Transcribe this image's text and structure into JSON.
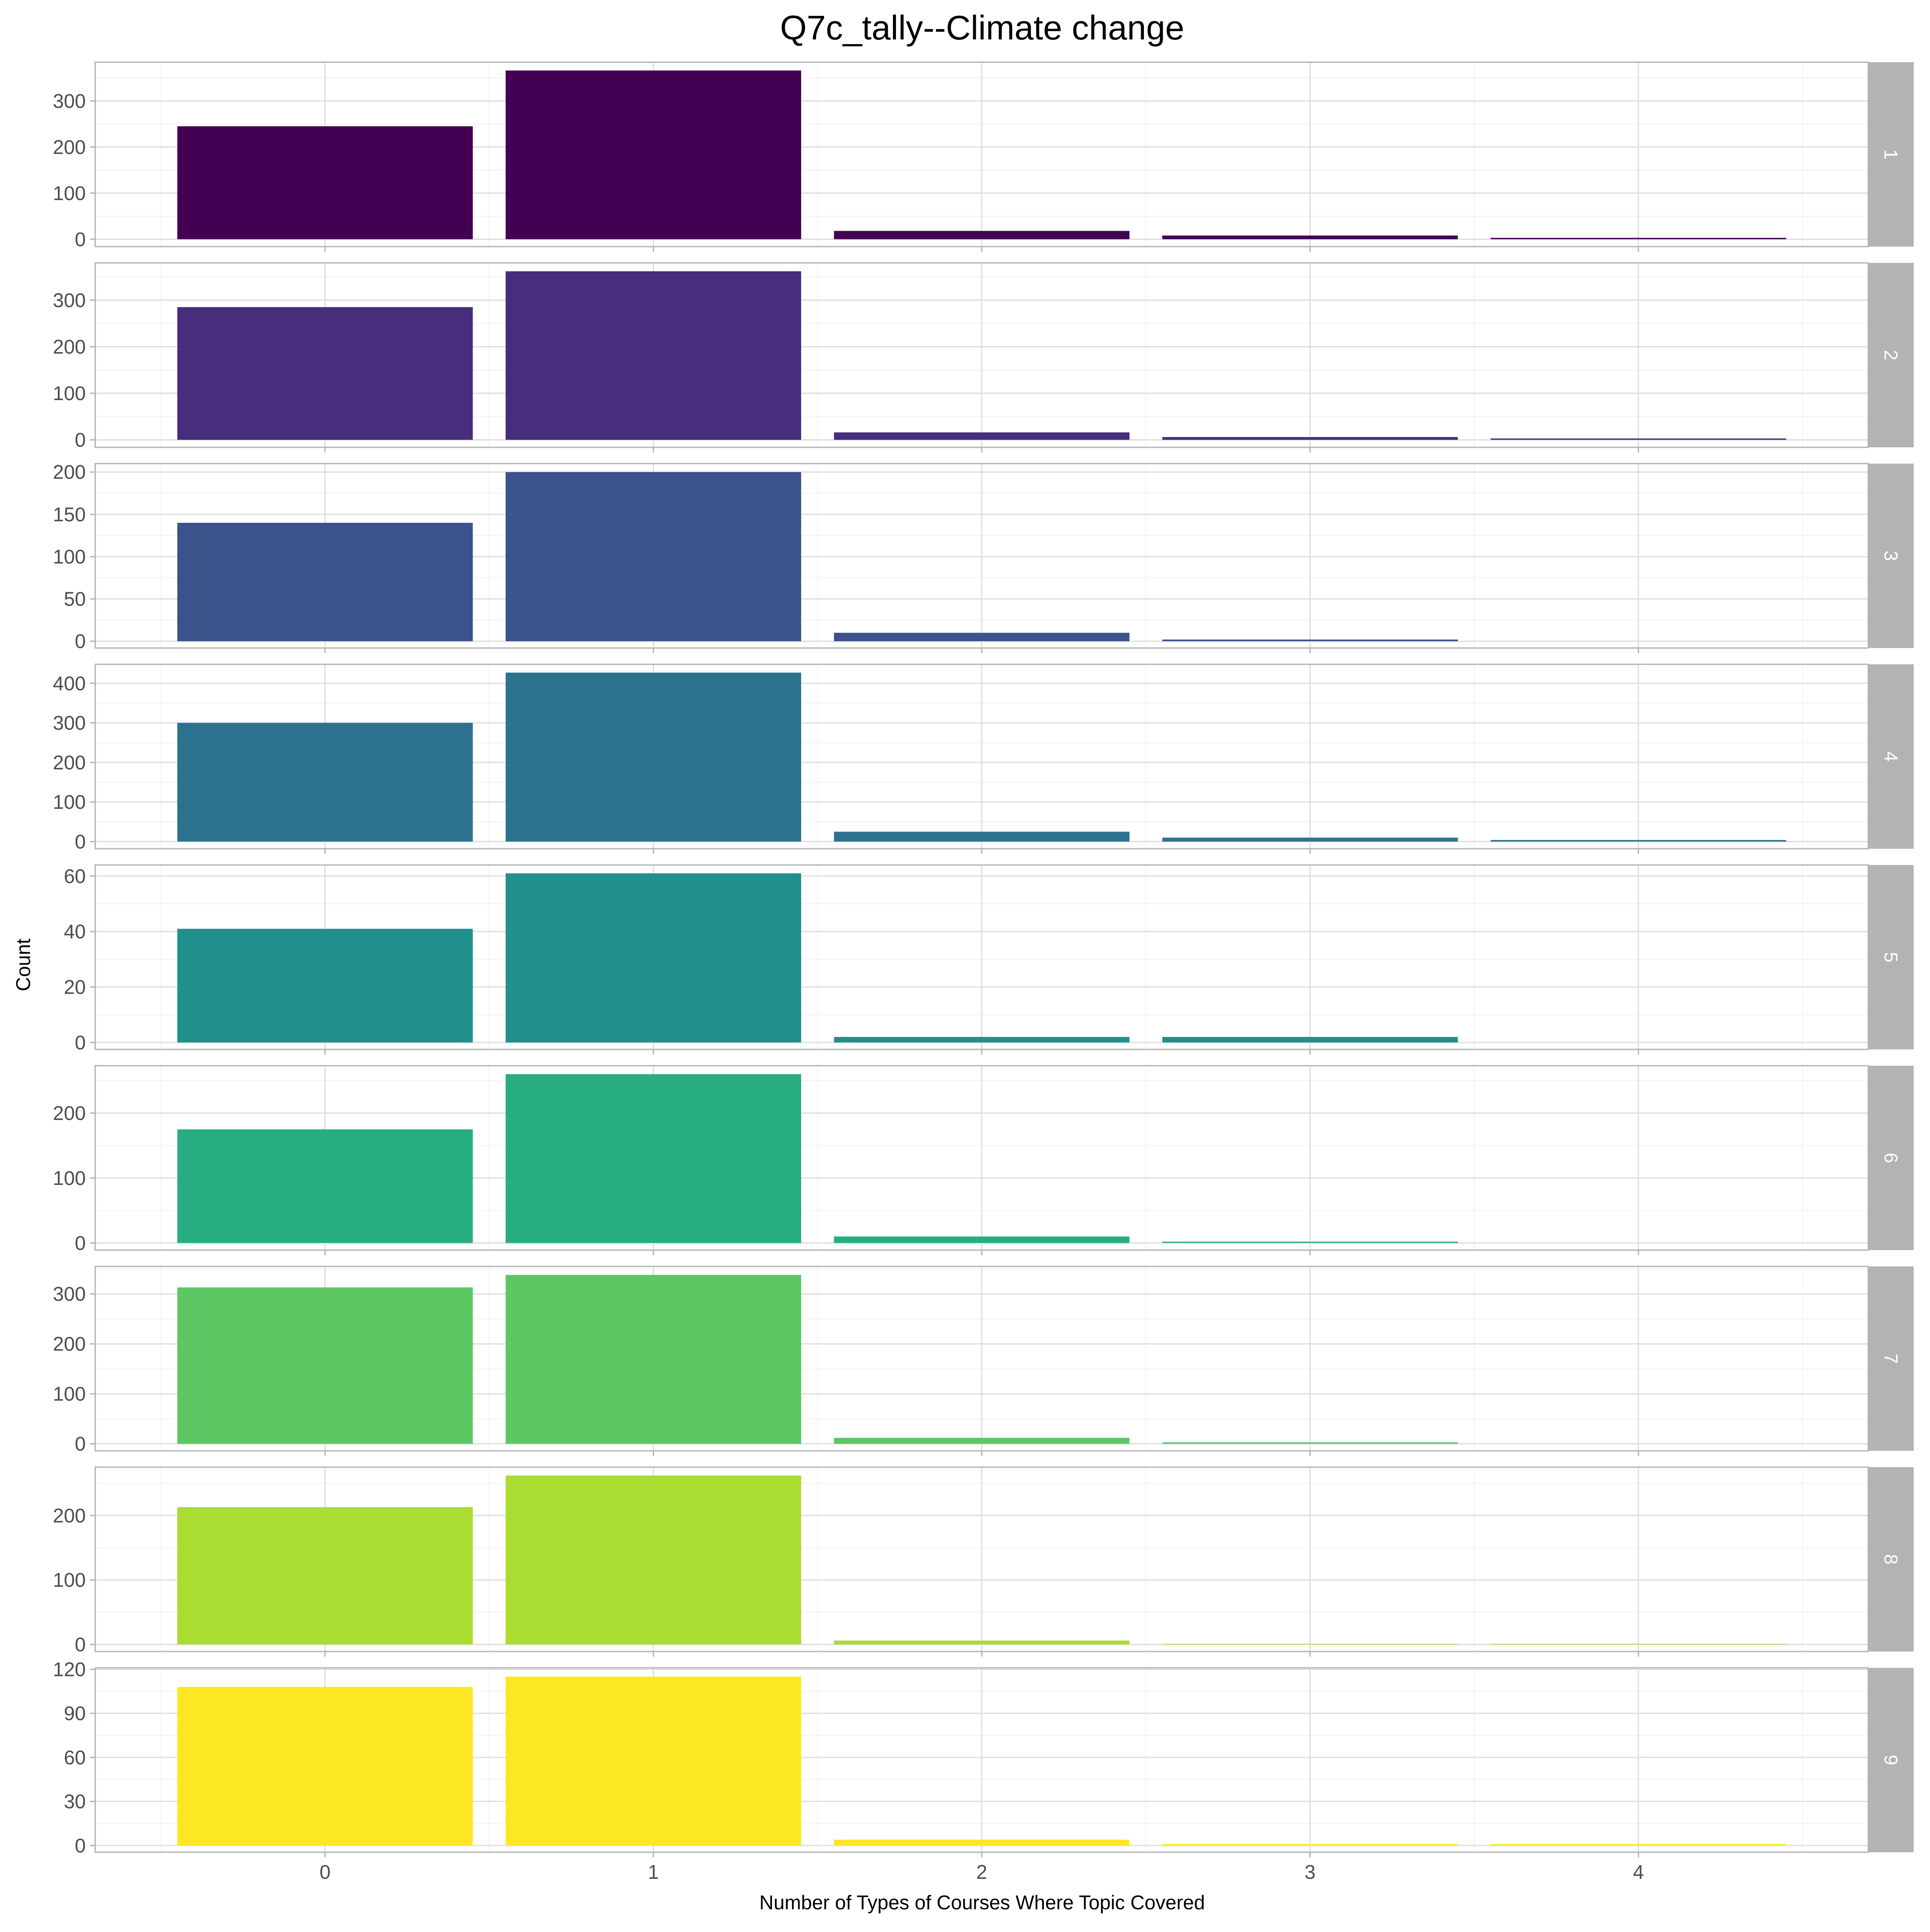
{
  "chart_data": {
    "type": "bar",
    "title": "Q7c_tally--Climate change",
    "xlabel": "Number of Types of Courses Where Topic Covered",
    "ylabel": "Count",
    "categories": [
      "0",
      "1",
      "2",
      "3",
      "4"
    ],
    "x_ticks": [
      "0",
      "1",
      "2",
      "3",
      "4"
    ],
    "grid": true,
    "facet_layout": "rows",
    "panels": [
      {
        "strip": "1",
        "color": "#440154",
        "values": [
          245,
          366,
          18,
          8,
          3
        ],
        "ylim": [
          -16,
          384
        ],
        "yticks": [
          "0",
          "100",
          "200",
          "300"
        ]
      },
      {
        "strip": "2",
        "color": "#472D7B",
        "values": [
          285,
          362,
          16,
          6,
          3
        ],
        "ylim": [
          -16,
          380
        ],
        "yticks": [
          "0",
          "100",
          "200",
          "300"
        ]
      },
      {
        "strip": "3",
        "color": "#3B528B",
        "values": [
          140,
          200,
          10,
          2,
          0
        ],
        "ylim": [
          -8,
          210
        ],
        "yticks": [
          "0",
          "50",
          "100",
          "150",
          "200"
        ]
      },
      {
        "strip": "4",
        "color": "#2C728E",
        "values": [
          300,
          427,
          25,
          10,
          4
        ],
        "ylim": [
          -18,
          448
        ],
        "yticks": [
          "0",
          "100",
          "200",
          "300",
          "400"
        ]
      },
      {
        "strip": "5",
        "color": "#21908C",
        "values": [
          41,
          61,
          2,
          2,
          0
        ],
        "ylim": [
          -2.5,
          64
        ],
        "yticks": [
          "0",
          "20",
          "40",
          "60"
        ]
      },
      {
        "strip": "6",
        "color": "#27AD81",
        "values": [
          175,
          260,
          10,
          2,
          0
        ],
        "ylim": [
          -11,
          273
        ],
        "yticks": [
          "0",
          "100",
          "200"
        ]
      },
      {
        "strip": "7",
        "color": "#5DC863",
        "values": [
          313,
          338,
          12,
          3,
          0
        ],
        "ylim": [
          -14,
          355
        ],
        "yticks": [
          "0",
          "100",
          "200",
          "300"
        ]
      },
      {
        "strip": "8",
        "color": "#AADC32",
        "values": [
          213,
          262,
          6,
          1,
          1
        ],
        "ylim": [
          -11,
          275
        ],
        "yticks": [
          "0",
          "100",
          "200"
        ]
      },
      {
        "strip": "9",
        "color": "#FDE725",
        "values": [
          108,
          115,
          4,
          1,
          1
        ],
        "ylim": [
          -4.6,
          121
        ],
        "yticks": [
          "0",
          "30",
          "60",
          "90",
          "120"
        ]
      }
    ]
  }
}
